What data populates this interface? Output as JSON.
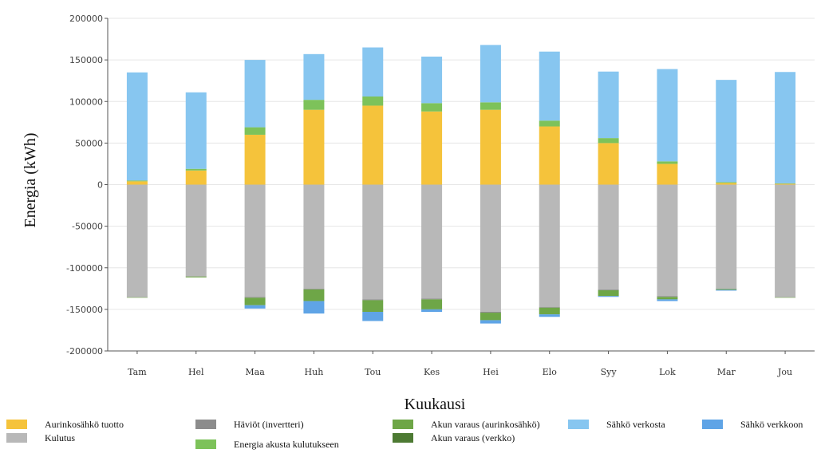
{
  "chart_data": {
    "type": "bar",
    "stacked": true,
    "title": "",
    "xlabel": "Kuukausi",
    "ylabel": "Energia (kWh)",
    "ylim": [
      -200000,
      200000
    ],
    "yticks": [
      200000,
      150000,
      100000,
      50000,
      0,
      -50000,
      -100000,
      -150000,
      -200000
    ],
    "ytick_labels": [
      "200000",
      "150000",
      "100000",
      "50000",
      "0",
      "-50000",
      "-100000",
      "-150000",
      "-200000"
    ],
    "grid": true,
    "legend_position": "bottom",
    "categories": [
      "Tam",
      "Hel",
      "Maa",
      "Huh",
      "Tou",
      "Kes",
      "Hei",
      "Elo",
      "Syy",
      "Lok",
      "Mar",
      "Jou"
    ],
    "series": [
      {
        "name": "Aurinkosähkö tuotto",
        "color": "#f5c33b",
        "sign": "positive",
        "values": [
          4000,
          17000,
          60000,
          90000,
          95000,
          88000,
          90000,
          70000,
          50000,
          25000,
          2000,
          1000
        ]
      },
      {
        "name": "Energia akusta kulutukseen",
        "color": "#7dc25a",
        "sign": "positive",
        "values": [
          1000,
          2000,
          9000,
          12000,
          11000,
          10000,
          9000,
          7000,
          6000,
          3000,
          1000,
          500
        ]
      },
      {
        "name": "Sähkö verkosta",
        "color": "#87c6f0",
        "sign": "positive",
        "values": [
          130000,
          92000,
          81000,
          55000,
          59000,
          56000,
          69000,
          83000,
          80000,
          111000,
          123000,
          134000
        ]
      },
      {
        "name": "Kulutus",
        "color": "#b8b8b8",
        "sign": "negative",
        "values": [
          -135000,
          -110000,
          -135000,
          -125000,
          -138000,
          -137000,
          -153000,
          -147000,
          -126000,
          -134000,
          -125000,
          -135000
        ]
      },
      {
        "name": "Häviöt (invertteri)",
        "color": "#8c8c8c",
        "sign": "negative",
        "values": [
          -500,
          -500,
          -1000,
          -1000,
          -1000,
          -1000,
          -1000,
          -1000,
          -1000,
          -1000,
          -500,
          -500
        ]
      },
      {
        "name": "Akun varaus (aurinkosähkö)",
        "color": "#6ea647",
        "sign": "negative",
        "values": [
          -300,
          -1000,
          -9000,
          -14000,
          -14000,
          -12000,
          -9000,
          -8000,
          -7000,
          -3000,
          -1000,
          -300
        ]
      },
      {
        "name": "Akun varaus (verkko)",
        "color": "#4d7a33",
        "sign": "negative",
        "values": [
          0,
          0,
          0,
          0,
          0,
          0,
          0,
          0,
          0,
          0,
          0,
          0
        ]
      },
      {
        "name": "Sähkö verkkoon",
        "color": "#5fa4e6",
        "sign": "negative",
        "values": [
          0,
          0,
          -4000,
          -15000,
          -11000,
          -3000,
          -4000,
          -3000,
          -1000,
          -2000,
          -1000,
          0
        ]
      }
    ]
  },
  "legend": [
    {
      "label": "Aurinkosähkö tuotto",
      "color": "#f5c33b"
    },
    {
      "label": "Kulutus",
      "color": "#b8b8b8"
    },
    {
      "label": "Häviöt (invertteri)",
      "color": "#8c8c8c"
    },
    {
      "label": "Energia akusta kulutukseen",
      "color": "#7dc25a"
    },
    {
      "label": "Akun varaus (aurinkosähkö)",
      "color": "#6ea647"
    },
    {
      "label": "Akun varaus (verkko)",
      "color": "#4d7a33"
    },
    {
      "label": "Sähkö verkosta",
      "color": "#87c6f0"
    },
    {
      "label": "Sähkö verkkoon",
      "color": "#5fa4e6"
    }
  ]
}
